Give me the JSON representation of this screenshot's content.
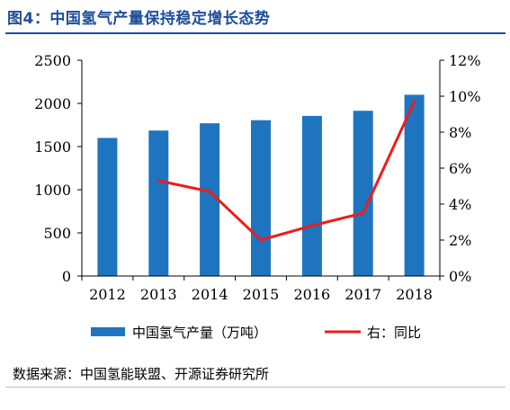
{
  "figure": {
    "title": "图4：中国氢气产量保持稳定增长态势",
    "source": "数据来源：中国氢能联盟、开源证券研究所"
  },
  "colors": {
    "title_blue": "#1f4e9c",
    "bar_blue": "#1f74c0",
    "line_red": "#ee1c1c",
    "axis": "#000000"
  },
  "chart_data": {
    "type": "bar",
    "categories": [
      "2012",
      "2013",
      "2014",
      "2015",
      "2016",
      "2017",
      "2018"
    ],
    "series": [
      {
        "name": "中国氢气产量（万吨）",
        "type": "bar",
        "axis": "left",
        "values": [
          1600,
          1685,
          1770,
          1805,
          1855,
          1915,
          2100
        ]
      },
      {
        "name": "右：同比",
        "type": "line",
        "axis": "right",
        "values": [
          null,
          0.053,
          0.047,
          0.02,
          0.028,
          0.035,
          0.097
        ]
      }
    ],
    "left_axis": {
      "ylim": [
        0,
        2500
      ],
      "ticks": [
        0,
        500,
        1000,
        1500,
        2000,
        2500
      ],
      "tick_labels": [
        "0",
        "500",
        "1000",
        "1500",
        "2000",
        "2500"
      ]
    },
    "right_axis": {
      "ylim": [
        0,
        0.12
      ],
      "ticks": [
        0,
        0.02,
        0.04,
        0.06,
        0.08,
        0.1,
        0.12
      ],
      "tick_labels": [
        "0%",
        "2%",
        "4%",
        "6%",
        "8%",
        "10%",
        "12%"
      ]
    },
    "grid": false,
    "legend": {
      "placement": "bottom",
      "entries": [
        "中国氢气产量（万吨）",
        "右：同比"
      ]
    }
  }
}
